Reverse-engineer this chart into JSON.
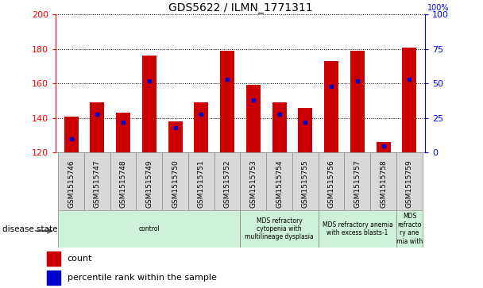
{
  "title": "GDS5622 / ILMN_1771311",
  "samples": [
    "GSM1515746",
    "GSM1515747",
    "GSM1515748",
    "GSM1515749",
    "GSM1515750",
    "GSM1515751",
    "GSM1515752",
    "GSM1515753",
    "GSM1515754",
    "GSM1515755",
    "GSM1515756",
    "GSM1515757",
    "GSM1515758",
    "GSM1515759"
  ],
  "counts": [
    141,
    149,
    143,
    176,
    138,
    149,
    179,
    159,
    149,
    146,
    173,
    179,
    126,
    181
  ],
  "percentile_ranks": [
    10,
    28,
    22,
    52,
    18,
    28,
    53,
    38,
    28,
    22,
    48,
    52,
    5,
    53
  ],
  "ylim_left": [
    120,
    200
  ],
  "ylim_right": [
    0,
    100
  ],
  "yticks_left": [
    120,
    140,
    160,
    180,
    200
  ],
  "yticks_right": [
    0,
    25,
    50,
    75,
    100
  ],
  "bar_color": "#cc0000",
  "dot_color": "#0000cc",
  "bar_bottom": 120,
  "disease_groups": [
    {
      "label": "control",
      "start": 0,
      "end": 7
    },
    {
      "label": "MDS refractory\ncytopenia with\nmultilineage dysplasia",
      "start": 7,
      "end": 10
    },
    {
      "label": "MDS refractory anemia\nwith excess blasts-1",
      "start": 10,
      "end": 13
    },
    {
      "label": "MDS\nrefracto\nry ane\nmia with",
      "start": 13,
      "end": 14
    }
  ],
  "disease_group_color": "#ccf0d8",
  "sample_bg_color": "#d8d8d8",
  "legend_count_label": "count",
  "legend_pct_label": "percentile rank within the sample",
  "disease_state_label": "disease state"
}
